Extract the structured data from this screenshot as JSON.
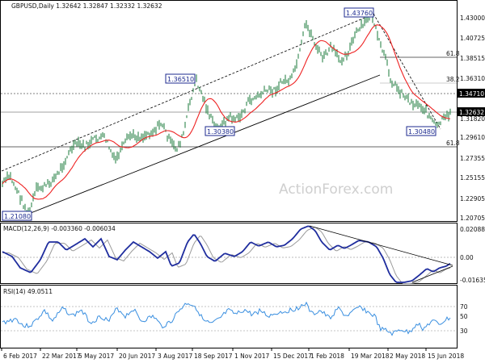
{
  "chart_data": [
    {
      "type": "line",
      "title": "GBPUSD,Daily  1.32642 1.32847 1.32332 1.32632",
      "series": [
        {
          "name": "",
          "x": [
            "6 Feb 2017",
            "22 Mar 2017",
            "5 May 2017",
            "20 Jun 2017",
            "3 Aug 2017",
            "18 Sep 2017",
            "1 Nov 2017",
            "15 Dec 2017",
            "1 Feb 2018",
            "19 Mar 2018",
            "2 May 2018",
            "15 Jun 2018"
          ],
          "values": [
            1.248,
            1.238,
            1.295,
            1.272,
            1.305,
            1.35,
            1.318,
            1.345,
            1.415,
            1.41,
            1.37,
            1.3263
          ]
        }
      ],
      "ylim": [
        1.2,
        1.442
      ],
      "yticks": [
        "1.43000",
        "1.40725",
        "1.38515",
        "1.36310",
        "1.34710",
        "1.32632",
        "1.31820",
        "1.29610",
        "1.27355",
        "1.25155",
        "1.22905",
        "1.20705"
      ],
      "xticks": [
        "6 Feb 2017",
        "22 Mar 2017",
        "5 May 2017",
        "20 Jun 2017",
        "3 Aug 2017",
        "18 Sep 2017",
        "1 Nov 2017",
        "15 Dec 2017",
        "1 Feb 2018",
        "19 Mar 2018",
        "2 May 2018",
        "15 Jun 2018"
      ],
      "annotations": [
        "1.43760",
        "1.36510",
        "1.30380",
        "1.30480",
        "1.21080",
        "61.8",
        "38.2",
        "61.8",
        "1.34710",
        "1.32632"
      ],
      "watermark": "ActionForex.com"
    },
    {
      "type": "line",
      "title": "MACD(12,26,9) -0.003360 -0.006034",
      "ylim": [
        -0.016357,
        0.020886
      ],
      "yticks": [
        "0.020886",
        "0.00",
        "-0.016357"
      ]
    },
    {
      "type": "line",
      "title": "RSI(14) 49.0511",
      "ylim": [
        0,
        100
      ],
      "yticks": [
        "70",
        "50",
        "30"
      ]
    }
  ]
}
